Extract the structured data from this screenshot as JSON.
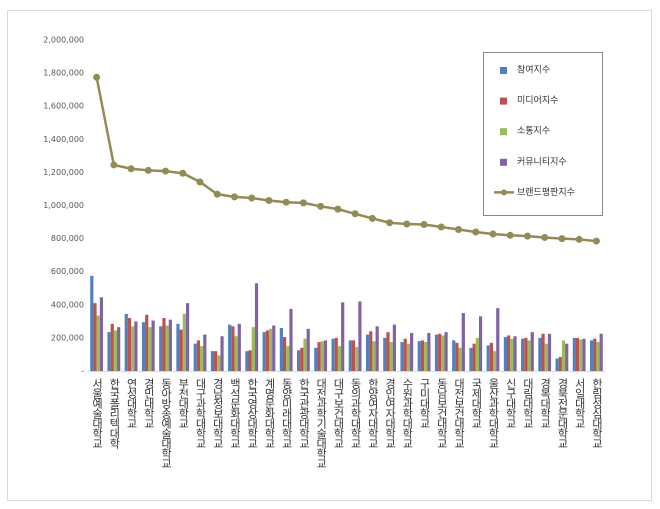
{
  "chart_data": {
    "type": "bar",
    "categories": [
      "서울예술대학교",
      "한국폴리텍대학",
      "연성대학교",
      "경민대학교",
      "동아방송예술대학교",
      "부천대학교",
      "대구과학대학교",
      "경남정보대학교",
      "백석문화대학교",
      "한국영상대학교",
      "계명문화대학교",
      "동양미래대학교",
      "한국관광대학교",
      "대전과학기술대학교",
      "대구보건대학교",
      "동의과학대학교",
      "한양여자대학교",
      "경인여자대학교",
      "수원과학대학교",
      "구미대학교",
      "동남보건대학교",
      "대전보건대학교",
      "국제대학교",
      "울산과학대학교",
      "신구대학교",
      "대림대학교",
      "경복대학교",
      "경북전문대학교",
      "서일대학교",
      "한림성심대학교"
    ],
    "series": [
      {
        "name": "참여지수",
        "type": "bar",
        "color": "#4f81bd",
        "values": [
          575000,
          235000,
          345000,
          295000,
          270000,
          285000,
          165000,
          120000,
          280000,
          120000,
          235000,
          260000,
          125000,
          140000,
          195000,
          185000,
          220000,
          200000,
          175000,
          180000,
          220000,
          185000,
          140000,
          155000,
          205000,
          195000,
          200000,
          75000,
          200000,
          185000
        ]
      },
      {
        "name": "미디어지수",
        "type": "bar",
        "color": "#c0504d",
        "values": [
          410000,
          285000,
          320000,
          340000,
          320000,
          250000,
          185000,
          120000,
          270000,
          125000,
          245000,
          205000,
          140000,
          175000,
          200000,
          185000,
          240000,
          235000,
          195000,
          185000,
          225000,
          170000,
          165000,
          170000,
          215000,
          200000,
          225000,
          85000,
          200000,
          195000
        ]
      },
      {
        "name": "소통지수",
        "type": "bar",
        "color": "#9bbb59",
        "values": [
          335000,
          245000,
          270000,
          265000,
          275000,
          345000,
          150000,
          95000,
          210000,
          265000,
          255000,
          150000,
          195000,
          180000,
          150000,
          145000,
          180000,
          175000,
          165000,
          175000,
          215000,
          140000,
          200000,
          120000,
          195000,
          185000,
          165000,
          185000,
          190000,
          175000
        ]
      },
      {
        "name": "커뮤니티지수",
        "type": "bar",
        "color": "#8064a2",
        "values": [
          445000,
          265000,
          300000,
          305000,
          310000,
          410000,
          220000,
          210000,
          285000,
          530000,
          275000,
          375000,
          255000,
          185000,
          415000,
          420000,
          270000,
          280000,
          230000,
          230000,
          235000,
          350000,
          330000,
          380000,
          210000,
          235000,
          225000,
          165000,
          195000,
          225000
        ]
      },
      {
        "name": "브랜드평판지수",
        "type": "line",
        "color": "#948a54",
        "values": [
          1775000,
          1245000,
          1222000,
          1212000,
          1208000,
          1195000,
          1142000,
          1068000,
          1052000,
          1045000,
          1030000,
          1020000,
          1016000,
          995000,
          978000,
          950000,
          922000,
          896000,
          888000,
          885000,
          870000,
          855000,
          840000,
          828000,
          820000,
          815000,
          807000,
          800000,
          795000,
          785000
        ]
      }
    ],
    "ylim": [
      0,
      2000000
    ],
    "yticks": [
      {
        "value": 0,
        "label": "-"
      },
      {
        "value": 200000,
        "label": "200,000"
      },
      {
        "value": 400000,
        "label": "400,000"
      },
      {
        "value": 600000,
        "label": "600,000"
      },
      {
        "value": 800000,
        "label": "800,000"
      },
      {
        "value": 1000000,
        "label": "1,000,000"
      },
      {
        "value": 1200000,
        "label": "1,200,000"
      },
      {
        "value": 1400000,
        "label": "1,400,000"
      },
      {
        "value": 1600000,
        "label": "1,600,000"
      },
      {
        "value": 1800000,
        "label": "1,800,000"
      },
      {
        "value": 2000000,
        "label": "2,000,000"
      }
    ],
    "grid": false,
    "legend": "upper right"
  }
}
